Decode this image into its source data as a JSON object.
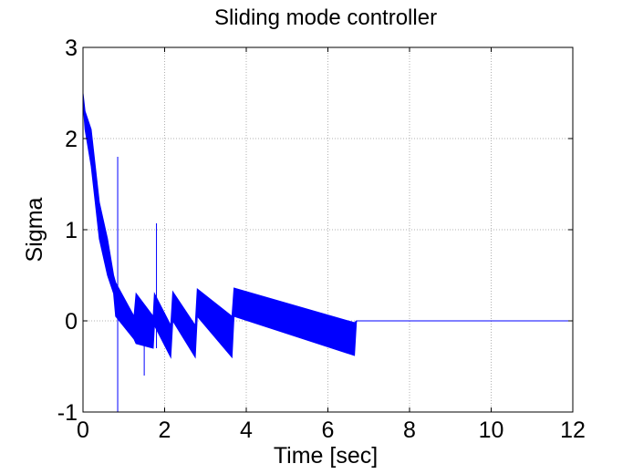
{
  "chart_data": {
    "type": "line",
    "title": "Sliding mode controller",
    "xlabel": "Time [sec]",
    "ylabel": "Sigma",
    "xlim": [
      0,
      12
    ],
    "ylim": [
      -1,
      3
    ],
    "xticks": [
      0,
      2,
      4,
      6,
      8,
      10,
      12
    ],
    "yticks": [
      -1,
      0,
      1,
      2,
      3
    ],
    "grid": true,
    "series": [
      {
        "color": "#0000ff",
        "envelope": [
          {
            "x": 0.0,
            "upper": 2.5,
            "lower": 2.4
          },
          {
            "x": 0.05,
            "upper": 2.3,
            "lower": 2.1
          },
          {
            "x": 0.2,
            "upper": 2.1,
            "lower": 1.7
          },
          {
            "x": 0.3,
            "upper": 1.7,
            "lower": 1.3
          },
          {
            "x": 0.4,
            "upper": 1.3,
            "lower": 0.9
          },
          {
            "x": 0.6,
            "upper": 0.9,
            "lower": 0.5
          },
          {
            "x": 0.75,
            "upper": 0.5,
            "lower": 0.3
          },
          {
            "x": 0.8,
            "upper": 0.42,
            "lower": 0.05
          },
          {
            "x": 1.25,
            "upper": 0.05,
            "lower": -0.2
          },
          {
            "x": 1.3,
            "upper": 0.3,
            "lower": -0.25
          },
          {
            "x": 1.72,
            "upper": 0.05,
            "lower": -0.3
          },
          {
            "x": 1.75,
            "upper": 0.3,
            "lower": -0.05
          },
          {
            "x": 2.15,
            "upper": -0.05,
            "lower": -0.4
          },
          {
            "x": 2.2,
            "upper": 0.32,
            "lower": 0.0
          },
          {
            "x": 2.75,
            "upper": -0.05,
            "lower": -0.4
          },
          {
            "x": 2.8,
            "upper": 0.35,
            "lower": 0.05
          },
          {
            "x": 3.65,
            "upper": 0.05,
            "lower": -0.4
          },
          {
            "x": 3.7,
            "upper": 0.36,
            "lower": 0.05
          },
          {
            "x": 6.65,
            "upper": -0.02,
            "lower": -0.38
          },
          {
            "x": 6.7,
            "upper": 0.0,
            "lower": 0.0
          },
          {
            "x": 12.0,
            "upper": 0.0,
            "lower": 0.0
          }
        ],
        "spikes": [
          {
            "x": 0.85,
            "high": 1.8,
            "low": -1.0
          },
          {
            "x": 1.8,
            "high": 1.07,
            "low": -0.3
          },
          {
            "x": 1.5,
            "high": 0.05,
            "low": -0.6
          }
        ]
      }
    ]
  }
}
